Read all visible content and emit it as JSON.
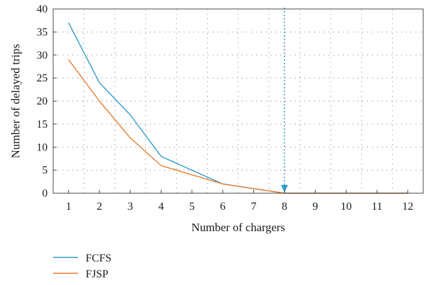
{
  "chart_data": {
    "type": "line",
    "xlabel": "Number of chargers",
    "ylabel": "Number of delayed trips",
    "x": [
      1,
      2,
      3,
      4,
      5,
      6,
      7,
      8,
      9,
      10,
      11,
      12
    ],
    "xlim": [
      0.5,
      12.5
    ],
    "ylim": [
      0,
      40
    ],
    "yticks": [
      0,
      5,
      10,
      15,
      20,
      25,
      30,
      35,
      40
    ],
    "grid": true,
    "legend_position": "bottom-left",
    "series": [
      {
        "name": "FCFS",
        "color": "#2e9ad0",
        "values": [
          37,
          24,
          17,
          8,
          5,
          2,
          1,
          0,
          0,
          0,
          0,
          0
        ]
      },
      {
        "name": "FJSP",
        "color": "#e87c2d",
        "values": [
          29,
          20,
          12,
          6,
          4,
          2,
          1,
          0,
          0,
          0,
          0,
          0
        ]
      }
    ],
    "annotation": {
      "type": "vertical-arrow",
      "x": 8,
      "color": "#2e9ad0"
    }
  }
}
